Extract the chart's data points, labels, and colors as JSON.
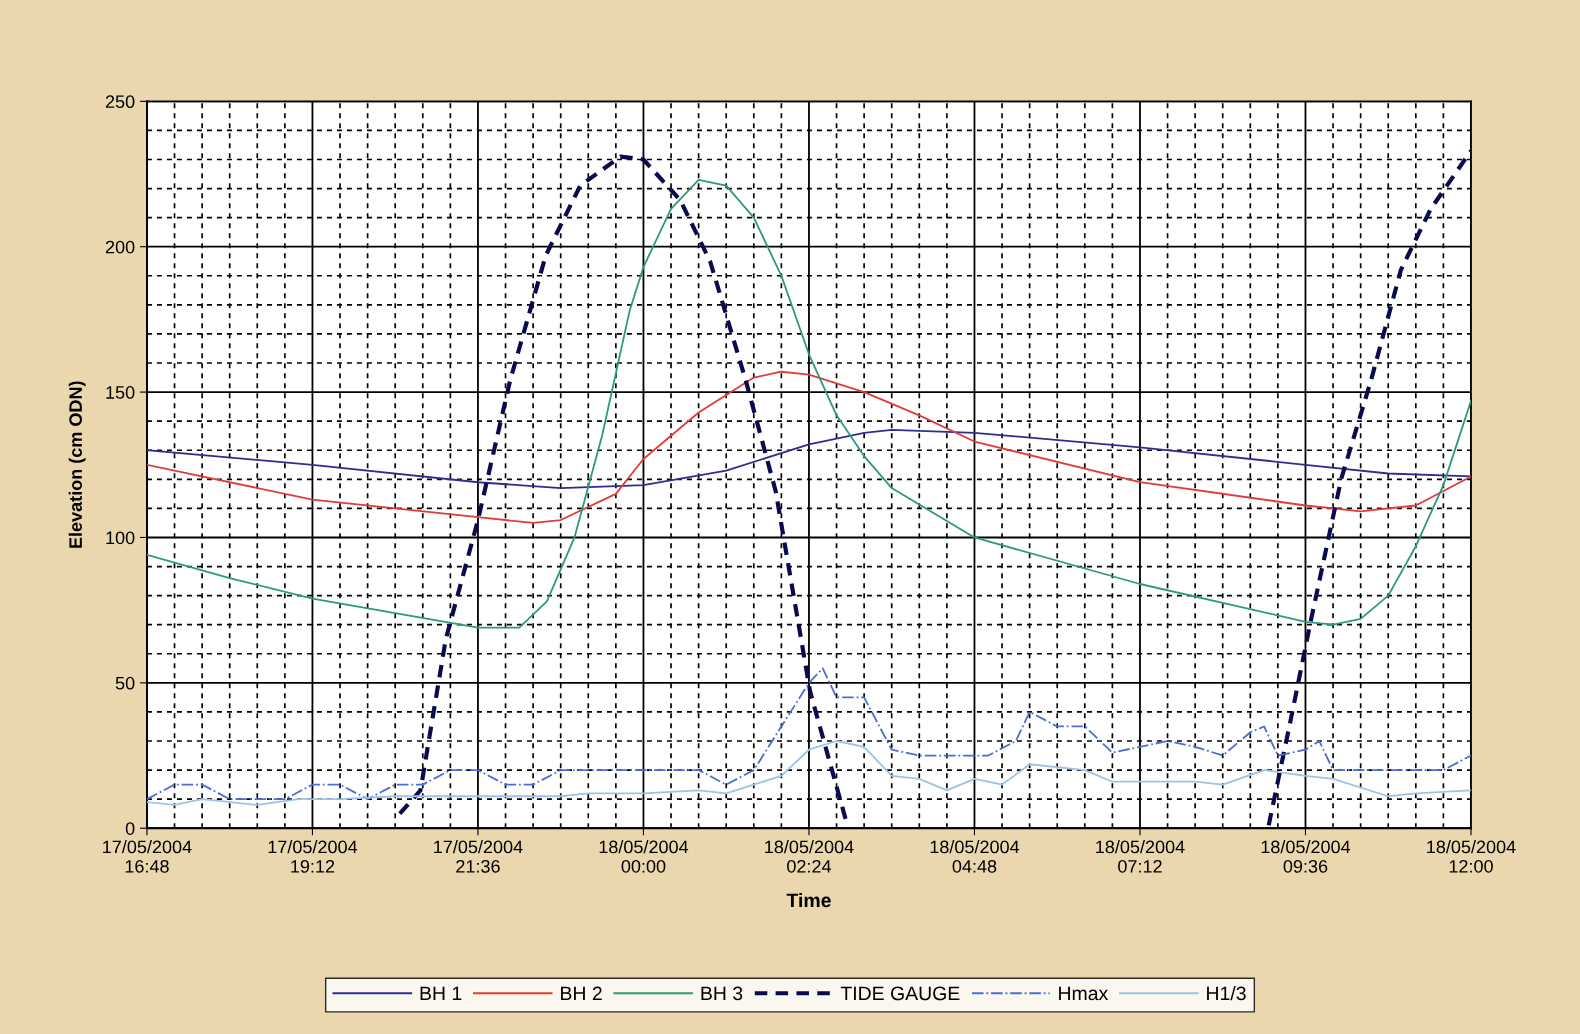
{
  "chart_data": {
    "type": "line",
    "xlabel": "Time",
    "ylabel": "Elevation (cm ODN)",
    "xlim": [
      "2004-05-17T16:48",
      "2004-05-18T12:00"
    ],
    "xticks": [
      {
        "value": "2004-05-17T16:48",
        "label": "17/05/2004\n16:48"
      },
      {
        "value": "2004-05-17T19:12",
        "label": "17/05/2004\n19:12"
      },
      {
        "value": "2004-05-17T21:36",
        "label": "17/05/2004\n21:36"
      },
      {
        "value": "2004-05-18T00:00",
        "label": "18/05/2004\n00:00"
      },
      {
        "value": "2004-05-18T02:24",
        "label": "18/05/2004\n02:24"
      },
      {
        "value": "2004-05-18T04:48",
        "label": "18/05/2004\n04:48"
      },
      {
        "value": "2004-05-18T07:12",
        "label": "18/05/2004\n07:12"
      },
      {
        "value": "2004-05-18T09:36",
        "label": "18/05/2004\n09:36"
      },
      {
        "value": "2004-05-18T12:00",
        "label": "18/05/2004\n12:00"
      }
    ],
    "ylim": [
      0,
      250
    ],
    "yticks": [
      0,
      50,
      100,
      150,
      200,
      250
    ],
    "grid": true,
    "legend": "bottom",
    "marker": "none",
    "series": [
      {
        "name": "BH 1",
        "color": "#2e2e8f",
        "line_style": "solid",
        "x": [
          "2004-05-17T16:48",
          "2004-05-17T19:12",
          "2004-05-17T21:36",
          "2004-05-17T22:48",
          "2004-05-18T00:00",
          "2004-05-18T01:12",
          "2004-05-18T02:24",
          "2004-05-18T03:12",
          "2004-05-18T03:36",
          "2004-05-18T04:48",
          "2004-05-18T07:12",
          "2004-05-18T09:36",
          "2004-05-18T10:48",
          "2004-05-18T12:00"
        ],
        "values": [
          130,
          125,
          119,
          117,
          118,
          123,
          132,
          136,
          137,
          136,
          131,
          125,
          122,
          121
        ]
      },
      {
        "name": "BH 2",
        "color": "#e03c3c",
        "line_style": "solid",
        "x": [
          "2004-05-17T16:48",
          "2004-05-17T19:12",
          "2004-05-17T21:36",
          "2004-05-17T22:24",
          "2004-05-17T22:48",
          "2004-05-17T23:36",
          "2004-05-18T00:00",
          "2004-05-18T00:48",
          "2004-05-18T01:36",
          "2004-05-18T02:00",
          "2004-05-18T02:24",
          "2004-05-18T03:12",
          "2004-05-18T04:00",
          "2004-05-18T04:48",
          "2004-05-18T07:12",
          "2004-05-18T09:36",
          "2004-05-18T10:24",
          "2004-05-18T11:12",
          "2004-05-18T12:00"
        ],
        "values": [
          125,
          113,
          107,
          105,
          106,
          115,
          127,
          143,
          155,
          157,
          156,
          150,
          142,
          133,
          119,
          111,
          109,
          111,
          121
        ]
      },
      {
        "name": "BH 3",
        "color": "#2e9a7a",
        "line_style": "solid",
        "x": [
          "2004-05-17T16:48",
          "2004-05-17T18:00",
          "2004-05-17T19:12",
          "2004-05-17T20:24",
          "2004-05-17T21:36",
          "2004-05-17T22:12",
          "2004-05-17T22:36",
          "2004-05-17T23:00",
          "2004-05-17T23:24",
          "2004-05-17T23:48",
          "2004-05-18T00:00",
          "2004-05-18T00:24",
          "2004-05-18T00:48",
          "2004-05-18T01:12",
          "2004-05-18T01:36",
          "2004-05-18T02:00",
          "2004-05-18T02:24",
          "2004-05-18T02:48",
          "2004-05-18T03:12",
          "2004-05-18T03:36",
          "2004-05-18T04:48",
          "2004-05-18T07:12",
          "2004-05-18T09:36",
          "2004-05-18T10:00",
          "2004-05-18T10:24",
          "2004-05-18T10:48",
          "2004-05-18T11:12",
          "2004-05-18T11:36",
          "2004-05-18T12:00"
        ],
        "values": [
          94,
          86,
          79,
          74,
          69,
          69,
          78,
          100,
          135,
          178,
          193,
          213,
          223,
          221,
          210,
          190,
          163,
          142,
          128,
          117,
          100,
          84,
          71,
          70,
          72,
          80,
          97,
          118,
          147
        ]
      },
      {
        "name": "TIDE GAUGE",
        "color": "#0a0a50",
        "line_style": "dashed",
        "x": [
          "2004-05-17T20:28",
          "2004-05-17T20:46",
          "2004-05-17T21:08",
          "2004-05-17T21:36",
          "2004-05-17T22:04",
          "2004-05-17T22:35",
          "2004-05-17T23:05",
          "2004-05-17T23:40",
          "2004-05-18T00:00",
          "2004-05-18T00:32",
          "2004-05-18T00:58",
          "2004-05-18T01:29",
          "2004-05-18T01:55",
          "2004-05-18T02:25",
          "2004-05-18T02:56",
          "2004-05-18T06:00",
          "2004-05-18T09:04",
          "2004-05-18T09:23",
          "2004-05-18T09:41",
          "2004-05-18T10:07",
          "2004-05-18T10:33",
          "2004-05-18T10:59",
          "2004-05-18T11:25",
          "2004-05-18T12:00"
        ],
        "values": [
          5,
          13,
          65,
          106,
          154,
          197,
          221,
          231,
          230,
          216,
          195,
          154,
          116,
          47,
          3,
          null,
          1,
          37,
          72,
          120,
          154,
          192,
          213,
          233
        ]
      },
      {
        "name": "Hmax",
        "color": "#4a6fd0",
        "line_style": "dashdot",
        "x": [
          "2004-05-17T16:48",
          "2004-05-17T17:12",
          "2004-05-17T17:36",
          "2004-05-17T18:00",
          "2004-05-17T18:48",
          "2004-05-17T19:12",
          "2004-05-17T19:36",
          "2004-05-17T20:00",
          "2004-05-17T20:24",
          "2004-05-17T20:48",
          "2004-05-17T21:12",
          "2004-05-17T21:36",
          "2004-05-17T22:00",
          "2004-05-17T22:24",
          "2004-05-17T22:48",
          "2004-05-18T00:48",
          "2004-05-18T01:12",
          "2004-05-18T01:36",
          "2004-05-18T02:00",
          "2004-05-18T02:24",
          "2004-05-18T02:36",
          "2004-05-18T02:48",
          "2004-05-18T03:12",
          "2004-05-18T03:36",
          "2004-05-18T04:00",
          "2004-05-18T05:00",
          "2004-05-18T05:24",
          "2004-05-18T05:36",
          "2004-05-18T06:00",
          "2004-05-18T06:24",
          "2004-05-18T06:48",
          "2004-05-18T07:12",
          "2004-05-18T07:36",
          "2004-05-18T08:00",
          "2004-05-18T08:24",
          "2004-05-18T08:48",
          "2004-05-18T09:00",
          "2004-05-18T09:12",
          "2004-05-18T09:36",
          "2004-05-18T09:48",
          "2004-05-18T10:00",
          "2004-05-18T11:36",
          "2004-05-18T12:00"
        ],
        "values": [
          10,
          15,
          15,
          10,
          10,
          15,
          15,
          10,
          15,
          15,
          20,
          20,
          15,
          15,
          20,
          20,
          15,
          20,
          35,
          50,
          55,
          45,
          45,
          27,
          25,
          25,
          30,
          40,
          35,
          35,
          26,
          28,
          30,
          28,
          25,
          33,
          35,
          25,
          27,
          30,
          20,
          20,
          25
        ]
      },
      {
        "name": "H1/3",
        "color": "#9cc3e8",
        "line_style": "solid",
        "x": [
          "2004-05-17T16:48",
          "2004-05-17T17:12",
          "2004-05-17T17:36",
          "2004-05-17T18:24",
          "2004-05-17T19:00",
          "2004-05-17T19:36",
          "2004-05-17T20:24",
          "2004-05-17T21:36",
          "2004-05-17T22:48",
          "2004-05-17T23:12",
          "2004-05-18T00:00",
          "2004-05-18T00:48",
          "2004-05-18T01:12",
          "2004-05-18T01:36",
          "2004-05-18T02:00",
          "2004-05-18T02:24",
          "2004-05-18T02:48",
          "2004-05-18T03:12",
          "2004-05-18T03:36",
          "2004-05-18T04:00",
          "2004-05-18T04:24",
          "2004-05-18T04:48",
          "2004-05-18T05:12",
          "2004-05-18T05:36",
          "2004-05-18T06:24",
          "2004-05-18T06:48",
          "2004-05-18T07:12",
          "2004-05-18T08:00",
          "2004-05-18T08:24",
          "2004-05-18T09:00",
          "2004-05-18T09:36",
          "2004-05-18T10:00",
          "2004-05-18T10:48",
          "2004-05-18T11:12",
          "2004-05-18T12:00"
        ],
        "values": [
          9,
          8,
          10,
          8,
          10,
          10,
          11,
          11,
          11,
          12,
          12,
          13,
          12,
          15,
          18,
          27,
          30,
          28,
          18,
          17,
          13,
          17,
          15,
          22,
          20,
          16,
          16,
          16,
          15,
          20,
          18,
          17,
          11,
          12,
          13
        ]
      }
    ]
  }
}
